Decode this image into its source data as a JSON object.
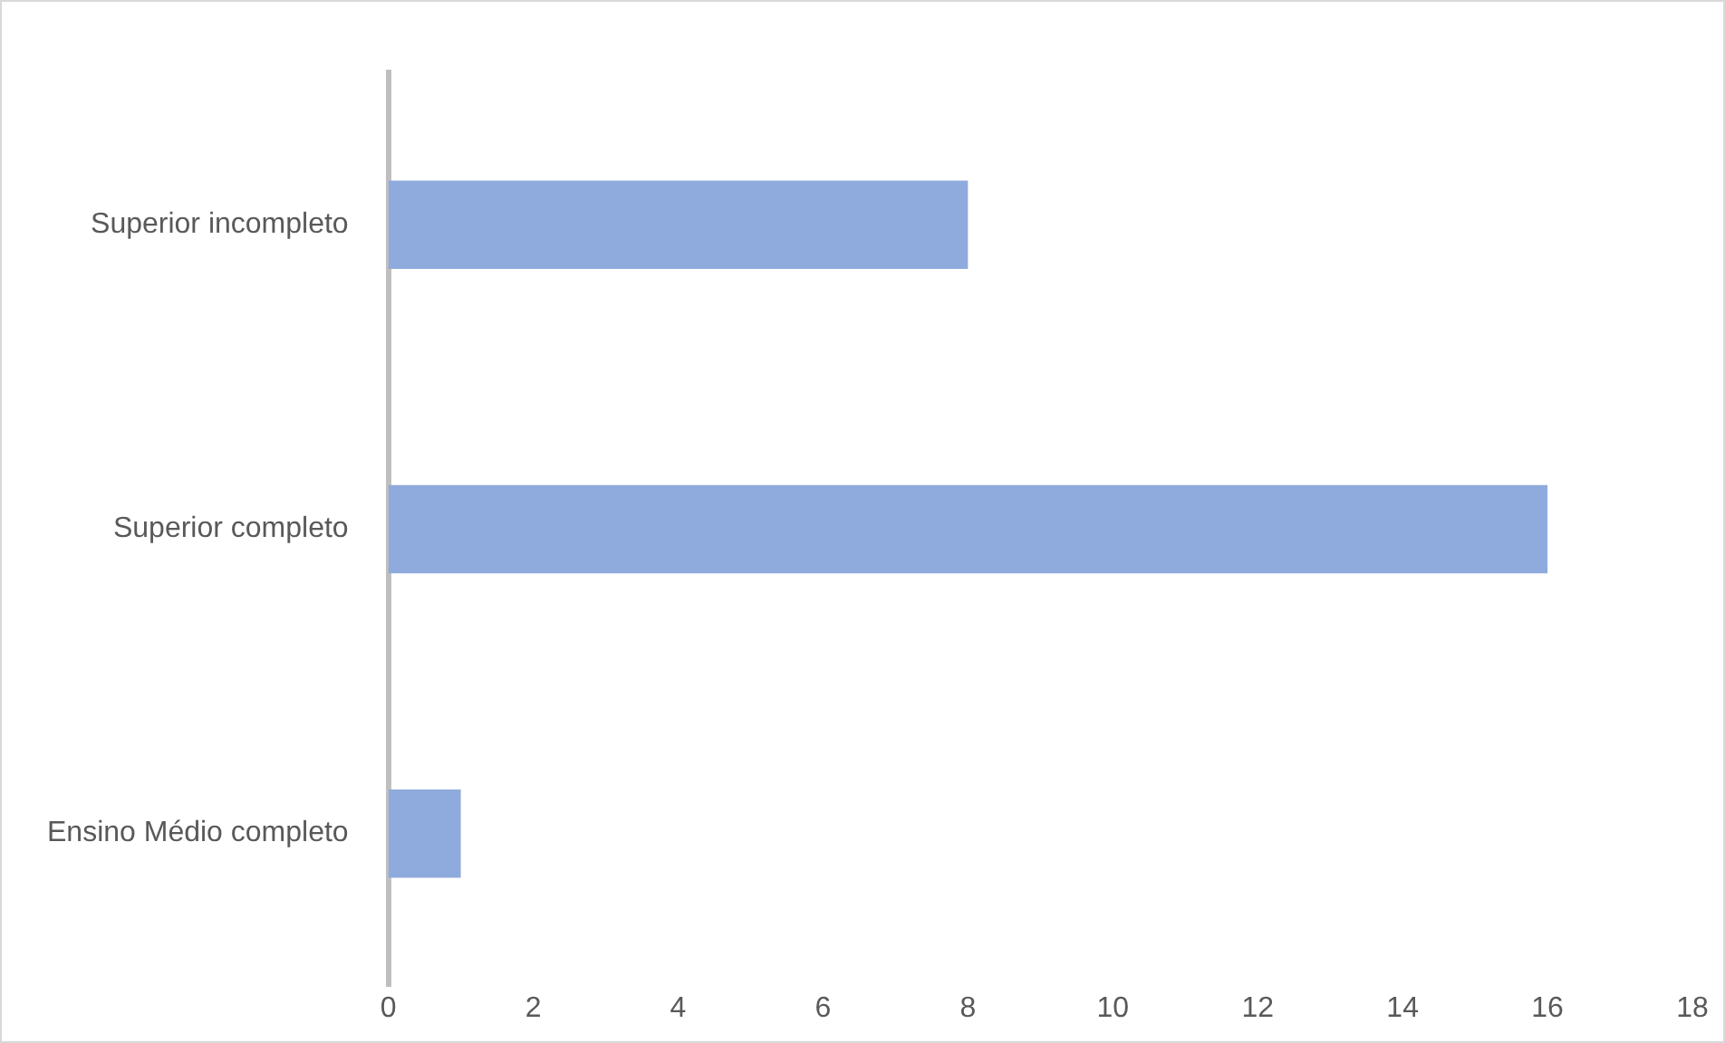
{
  "chart_data": {
    "type": "bar",
    "orientation": "horizontal",
    "categories": [
      "Superior incompleto",
      "Superior completo",
      "Ensino Médio completo"
    ],
    "values": [
      8,
      16,
      1
    ],
    "color": "#8faadc",
    "xlim": [
      0,
      18
    ],
    "xticks": [
      0,
      2,
      4,
      6,
      8,
      10,
      12,
      14,
      16,
      18
    ],
    "grid": false,
    "legend": false
  }
}
